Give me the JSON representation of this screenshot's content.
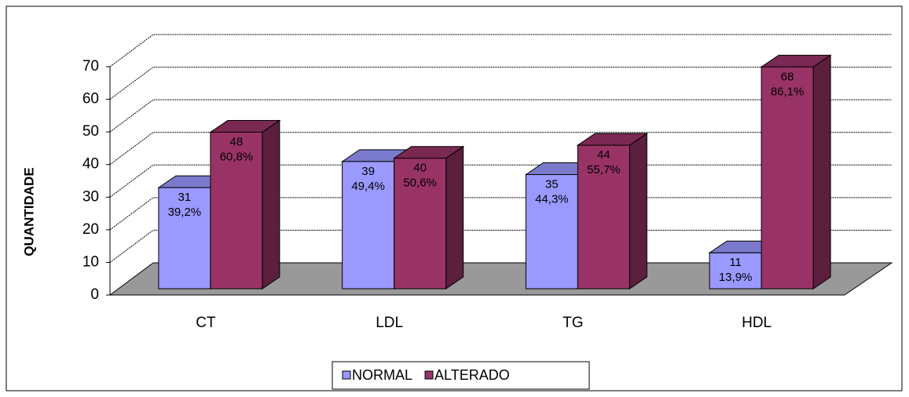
{
  "chart_data": {
    "type": "bar3d",
    "y_label": "QUANTIDADE",
    "categories": [
      "CT",
      "LDL",
      "TG",
      "HDL"
    ],
    "series": [
      {
        "name": "NORMAL",
        "color": "#9999ff",
        "values": [
          31,
          39,
          35,
          11
        ],
        "share_labels": [
          "39,2%",
          "49,4%",
          "44,3%",
          "13,9%"
        ]
      },
      {
        "name": "ALTERADO",
        "color": "#993366",
        "values": [
          48,
          40,
          44,
          68
        ],
        "share_labels": [
          "60,8%",
          "50,6%",
          "55,7%",
          "86,1%"
        ]
      }
    ],
    "ylim": [
      0,
      70
    ],
    "yticks": [
      0,
      10,
      20,
      30,
      40,
      50,
      60,
      70
    ],
    "grid": true,
    "legend": "bottom"
  }
}
